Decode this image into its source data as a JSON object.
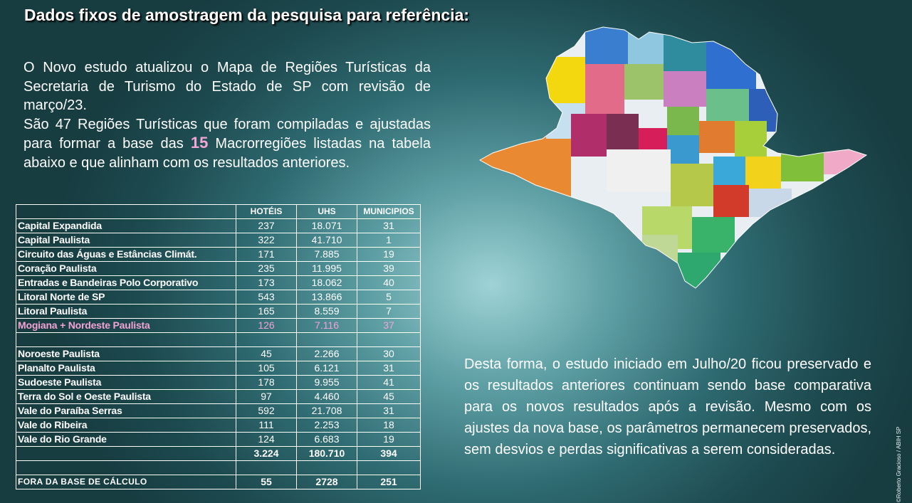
{
  "title": "Dados fixos de amostragem da pesquisa para referência:",
  "intro": {
    "p1": "O Novo estudo atualizou o Mapa de Regiões Turísticas da Secretaria de Turismo do Estado de SP com revisão de março/23.",
    "p2_before": "São 47 Regiões Turísticas que foram compiladas e ajustadas para formar a base das ",
    "p2_highlight": "15",
    "p2_after": " Macrorregiões listadas na tabela abaixo e que alinham com os resultados anteriores."
  },
  "table": {
    "headers": [
      "",
      "HOTÉIS",
      "UHS",
      "MUNICIPIOS"
    ],
    "rows": [
      [
        "Capital Expandida",
        "237",
        "18.071",
        "31"
      ],
      [
        "Capital Paulista",
        "322",
        "41.710",
        "1"
      ],
      [
        "Circuito das Águas e Estâncias Climát.",
        "171",
        "7.885",
        "19"
      ],
      [
        "Coração Paulista",
        "235",
        "11.995",
        "39"
      ],
      [
        "Entradas e Bandeiras Polo Corporativo",
        "173",
        "18.062",
        "40"
      ],
      [
        "Litoral Norte de SP",
        "543",
        "13.866",
        "5"
      ],
      [
        "Litoral Paulista",
        "165",
        "8.559",
        "7"
      ],
      [
        "Mogiana + Nordeste Paulista",
        "126",
        "7.116",
        "37"
      ],
      [
        "",
        "",
        "",
        ""
      ],
      [
        "Noroeste Paulista",
        "45",
        "2.266",
        "30"
      ],
      [
        "Planalto Paulista",
        "105",
        "6.121",
        "31"
      ],
      [
        "Sudoeste Paulista",
        "178",
        "9.955",
        "41"
      ],
      [
        "Terra do Sol e Oeste Paulista",
        "97",
        "4.460",
        "45"
      ],
      [
        "Vale do Paraíba Serras",
        "592",
        "21.708",
        "31"
      ],
      [
        "Vale do Ribeira",
        "111",
        "2.253",
        "18"
      ],
      [
        "Vale do Rio Grande",
        "124",
        "6.683",
        "19"
      ]
    ],
    "total": [
      "",
      "3.224",
      "180.710",
      "394"
    ],
    "fora": [
      "FORA DA BASE DE CÁLCULO",
      "55",
      "2728",
      "251"
    ],
    "highlight_color": "#f2a3d6"
  },
  "side_text": "Desta forma, o estudo iniciado em Julho/20 ficou preservado e os resultados anteriores continuam sendo base comparativa para os novos resultados após a revisão. Mesmo com os ajustes da nova base, os parâmetros permanecem preservados, sem desvios e perdas significativas a serem consideradas.",
  "credit": "©Roberto Gracioso / ABIH SP"
}
